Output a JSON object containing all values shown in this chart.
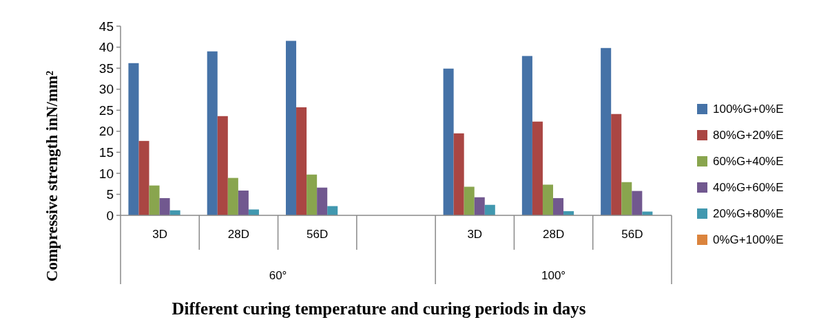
{
  "chart_data": {
    "type": "bar",
    "xlabel": "Different curing temperature and curing periods in days",
    "ylabel": "Compressive strength inN/mm²",
    "categories": [
      "3D",
      "28D",
      "56D",
      null,
      "3D",
      "28D",
      "56D"
    ],
    "series": [
      {
        "name": "100%G+0%E",
        "color": "#4572a7",
        "values": [
          36.2,
          39.0,
          41.5,
          null,
          34.9,
          37.9,
          39.8
        ]
      },
      {
        "name": "80%G+20%E",
        "color": "#aa4643",
        "values": [
          17.7,
          23.6,
          25.7,
          null,
          19.5,
          22.3,
          24.1
        ]
      },
      {
        "name": "60%G+40%E",
        "color": "#89a54e",
        "values": [
          7.1,
          8.9,
          9.7,
          null,
          6.8,
          7.3,
          7.9
        ]
      },
      {
        "name": "40%G+60%E",
        "color": "#71588f",
        "values": [
          4.1,
          5.9,
          6.6,
          null,
          4.3,
          4.1,
          5.8
        ]
      },
      {
        "name": "20%G+80%E",
        "color": "#4198af",
        "values": [
          1.2,
          1.4,
          2.2,
          null,
          2.5,
          1.0,
          0.9
        ]
      },
      {
        "name": "0%G+100%E",
        "color": "#db843d",
        "values": [
          0,
          0,
          0,
          null,
          0,
          0,
          0
        ]
      }
    ],
    "annotations": [
      "60°",
      "100°"
    ],
    "ylim": [
      0,
      45
    ],
    "yticks": [
      0,
      5,
      10,
      15,
      20,
      25,
      30,
      35,
      40,
      45
    ],
    "grid": false,
    "legend": "right"
  }
}
